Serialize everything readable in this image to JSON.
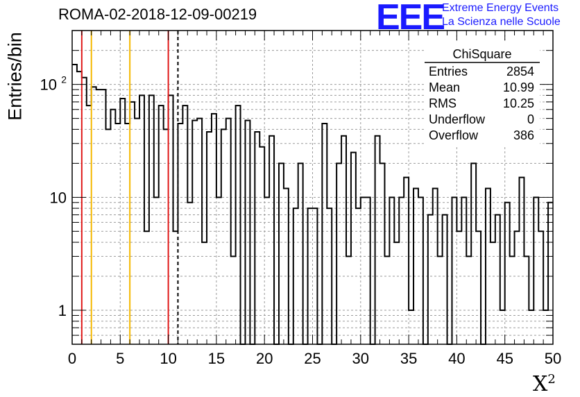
{
  "title": "ROMA-02-2018-12-09-00219",
  "logo": {
    "mark": "EEE",
    "line1": "Extreme Energy Events",
    "line2": "La Scienza nelle Scuole"
  },
  "colors": {
    "red": "#e01a1a",
    "orange": "#f5b800",
    "blue": "#1a1aff",
    "line": "#000000",
    "grid": "#9a9a9a"
  },
  "chart_data": {
    "type": "histogram",
    "xlabel": "X",
    "xlabel_sup": "2",
    "ylabel": "Entries/bin",
    "xlim": [
      0,
      50
    ],
    "ylim": [
      0.5,
      300
    ],
    "yscale": "log",
    "bin_width": 0.5,
    "grid": true,
    "x_ticks": [
      "0",
      "5",
      "10",
      "15",
      "20",
      "25",
      "30",
      "35",
      "40",
      "45",
      "50"
    ],
    "y_ticks": [
      {
        "value": 1,
        "label": "1"
      },
      {
        "value": 10,
        "label": "10"
      },
      {
        "value": 100,
        "label": "10",
        "exp": "2"
      }
    ],
    "values": [
      150,
      130,
      115,
      65,
      95,
      90,
      90,
      40,
      60,
      45,
      75,
      45,
      70,
      50,
      80,
      5,
      80,
      10,
      65,
      40,
      80,
      5,
      45,
      65,
      9,
      48,
      50,
      4,
      38,
      55,
      10,
      40,
      50,
      3,
      65,
      0,
      48,
      0,
      38,
      28,
      10,
      35,
      0,
      20,
      12,
      0,
      8,
      20,
      0,
      8,
      8,
      0,
      45,
      8,
      0,
      20,
      35,
      3,
      25,
      8,
      10,
      10,
      0,
      35,
      20,
      3,
      10,
      4,
      10,
      15,
      1,
      12,
      10,
      0,
      7,
      12,
      3,
      7,
      0,
      10,
      5,
      10,
      3,
      20,
      5,
      0,
      12,
      4,
      7,
      1,
      9,
      3,
      5,
      15,
      3,
      1,
      10,
      5,
      1,
      9
    ],
    "vertical_lines": [
      {
        "x": 1,
        "color": "red",
        "style": "solid"
      },
      {
        "x": 2,
        "color": "orange",
        "style": "solid"
      },
      {
        "x": 6,
        "color": "orange",
        "style": "solid"
      },
      {
        "x": 10,
        "color": "red",
        "style": "solid"
      },
      {
        "x": 11,
        "color": "black",
        "style": "dashed"
      }
    ],
    "stats": {
      "name": "ChiSquare",
      "rows": [
        {
          "label": "Entries",
          "value": "2854"
        },
        {
          "label": "Mean",
          "value": "10.99"
        },
        {
          "label": "RMS",
          "value": "10.25"
        },
        {
          "label": "Underflow",
          "value": "0"
        },
        {
          "label": "Overflow",
          "value": "386"
        }
      ]
    }
  }
}
